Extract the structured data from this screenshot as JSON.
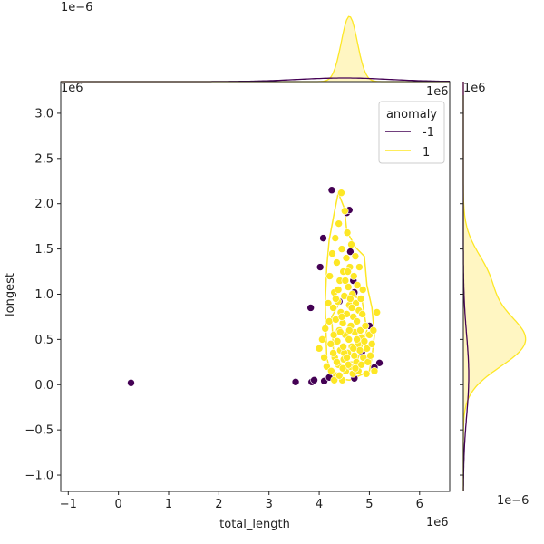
{
  "chart_data": {
    "type": "scatter",
    "title": "",
    "xlabel": "total_length",
    "ylabel": "longest",
    "x_offset_label": "1e6",
    "y_offset_label": "1e6",
    "top_marginal_offset_label": "1e−6",
    "right_marginal_offset_label": "1e−6",
    "xlim": [
      -1.15,
      6.6
    ],
    "ylim": [
      -1.18,
      3.35
    ],
    "x_ticks": [
      -1,
      0,
      1,
      2,
      3,
      4,
      5,
      6
    ],
    "y_ticks": [
      -1.0,
      -0.5,
      0.0,
      0.5,
      1.0,
      1.5,
      2.0,
      2.5,
      3.0
    ],
    "x_tick_labels": [
      "−1",
      "0",
      "1",
      "2",
      "3",
      "4",
      "5",
      "6"
    ],
    "y_tick_labels": [
      "−1.0",
      "−0.5",
      "0.0",
      "0.5",
      "1.0",
      "1.5",
      "2.0",
      "2.5",
      "3.0"
    ],
    "legend": {
      "title": "anomaly",
      "placement": "top-right",
      "entries": [
        {
          "label": "-1",
          "color": "#440154"
        },
        {
          "label": "1",
          "color": "#fde725"
        }
      ]
    },
    "colors": {
      "anomaly": "#440154",
      "normal": "#fde725",
      "normal_fill": "#fff6c2"
    },
    "series": [
      {
        "name": "-1",
        "points": [
          [
            0.25,
            0.02
          ],
          [
            3.53,
            0.03
          ],
          [
            3.85,
            0.03
          ],
          [
            3.9,
            0.05
          ],
          [
            4.1,
            0.04
          ],
          [
            4.2,
            0.08
          ],
          [
            3.83,
            0.85
          ],
          [
            4.02,
            1.3
          ],
          [
            4.08,
            1.62
          ],
          [
            4.25,
            2.15
          ],
          [
            4.55,
            1.9
          ],
          [
            4.6,
            1.93
          ],
          [
            4.62,
            1.47
          ],
          [
            4.68,
            1.15
          ],
          [
            4.7,
            1.02
          ],
          [
            4.95,
            0.65
          ],
          [
            5.0,
            0.65
          ],
          [
            5.2,
            0.24
          ],
          [
            5.1,
            0.19
          ],
          [
            4.7,
            0.07
          ],
          [
            4.85,
            0.36
          ],
          [
            4.4,
            0.92
          ]
        ]
      },
      {
        "name": "1",
        "points": [
          [
            4.0,
            0.4
          ],
          [
            4.06,
            0.5
          ],
          [
            4.1,
            0.3
          ],
          [
            4.12,
            0.62
          ],
          [
            4.15,
            0.2
          ],
          [
            4.18,
            0.9
          ],
          [
            4.2,
            0.7
          ],
          [
            4.21,
            1.2
          ],
          [
            4.23,
            0.45
          ],
          [
            4.24,
            0.15
          ],
          [
            4.26,
            1.45
          ],
          [
            4.28,
            0.85
          ],
          [
            4.29,
            0.55
          ],
          [
            4.3,
            1.02
          ],
          [
            4.31,
            0.3
          ],
          [
            4.32,
            1.62
          ],
          [
            4.33,
            0.72
          ],
          [
            4.34,
            0.1
          ],
          [
            4.35,
            1.35
          ],
          [
            4.36,
            0.48
          ],
          [
            4.37,
            0.92
          ],
          [
            4.38,
            0.22
          ],
          [
            4.39,
            1.78
          ],
          [
            4.4,
            0.6
          ],
          [
            4.41,
            1.15
          ],
          [
            4.42,
            0.38
          ],
          [
            4.43,
            0.8
          ],
          [
            4.44,
            2.12
          ],
          [
            4.45,
            1.5
          ],
          [
            4.46,
            0.05
          ],
          [
            4.47,
            0.68
          ],
          [
            4.48,
            1.25
          ],
          [
            4.49,
            0.28
          ],
          [
            4.5,
            0.98
          ],
          [
            4.51,
            1.92
          ],
          [
            4.52,
            0.55
          ],
          [
            4.53,
            0.15
          ],
          [
            4.54,
            1.4
          ],
          [
            4.55,
            0.78
          ],
          [
            4.56,
            1.68
          ],
          [
            4.57,
            0.35
          ],
          [
            4.58,
            1.08
          ],
          [
            4.59,
            0.5
          ],
          [
            4.6,
            0.88
          ],
          [
            4.61,
            1.3
          ],
          [
            4.62,
            0.2
          ],
          [
            4.63,
            0.65
          ],
          [
            4.64,
            1.55
          ],
          [
            4.65,
            0.42
          ],
          [
            4.66,
            1.0
          ],
          [
            4.67,
            0.12
          ],
          [
            4.68,
            0.75
          ],
          [
            4.69,
            1.2
          ],
          [
            4.7,
            0.32
          ],
          [
            4.71,
            0.58
          ],
          [
            4.72,
            1.42
          ],
          [
            4.73,
            0.9
          ],
          [
            4.74,
            0.25
          ],
          [
            4.75,
            0.7
          ],
          [
            4.76,
            1.1
          ],
          [
            4.77,
            0.45
          ],
          [
            4.78,
            0.15
          ],
          [
            4.79,
            0.82
          ],
          [
            4.8,
            1.3
          ],
          [
            4.81,
            0.38
          ],
          [
            4.82,
            0.6
          ],
          [
            4.83,
            0.95
          ],
          [
            4.84,
            0.22
          ],
          [
            4.85,
            0.52
          ],
          [
            4.86,
            0.78
          ],
          [
            4.87,
            1.05
          ],
          [
            4.88,
            0.3
          ],
          [
            4.9,
            0.48
          ],
          [
            4.92,
            0.65
          ],
          [
            4.94,
            0.12
          ],
          [
            4.95,
            0.4
          ],
          [
            4.97,
            0.25
          ],
          [
            5.0,
            0.55
          ],
          [
            5.02,
            0.32
          ],
          [
            5.05,
            0.45
          ],
          [
            5.08,
            0.6
          ],
          [
            5.1,
            0.15
          ],
          [
            5.15,
            0.8
          ],
          [
            4.3,
            0.05
          ],
          [
            4.4,
            0.1
          ],
          [
            4.5,
            0.35
          ],
          [
            4.6,
            0.6
          ],
          [
            4.45,
            0.75
          ],
          [
            4.35,
            0.25
          ],
          [
            4.55,
            0.3
          ],
          [
            4.65,
            0.85
          ],
          [
            4.75,
            0.5
          ],
          [
            4.42,
            0.58
          ],
          [
            4.52,
            1.15
          ],
          [
            4.48,
            0.42
          ],
          [
            4.58,
            0.22
          ],
          [
            4.38,
            1.05
          ],
          [
            4.62,
            0.95
          ],
          [
            4.68,
            0.4
          ],
          [
            4.28,
            0.35
          ],
          [
            4.33,
            0.95
          ],
          [
            4.47,
            0.18
          ],
          [
            4.57,
            1.25
          ],
          [
            4.72,
            0.18
          ]
        ]
      }
    ],
    "kde_contour": [
      [
        4.38,
        2.12
      ],
      [
        4.5,
        1.95
      ],
      [
        4.55,
        1.7
      ],
      [
        4.72,
        1.52
      ],
      [
        4.9,
        1.42
      ],
      [
        4.95,
        1.1
      ],
      [
        5.05,
        0.85
      ],
      [
        5.1,
        0.55
      ],
      [
        5.05,
        0.3
      ],
      [
        5.0,
        0.15
      ],
      [
        4.6,
        0.05
      ],
      [
        4.25,
        0.08
      ],
      [
        4.15,
        0.3
      ],
      [
        4.12,
        0.9
      ],
      [
        4.15,
        1.3
      ],
      [
        4.2,
        1.6
      ],
      [
        4.3,
        1.9
      ],
      [
        4.38,
        2.12
      ]
    ],
    "inner_contour": [
      [
        4.35,
        0.25
      ],
      [
        4.75,
        0.25
      ],
      [
        4.95,
        0.6
      ],
      [
        4.85,
        0.95
      ],
      [
        4.5,
        1.0
      ],
      [
        4.25,
        0.75
      ],
      [
        4.28,
        0.4
      ],
      [
        4.35,
        0.25
      ]
    ],
    "top_marginal": {
      "normal_peak_x": 4.6,
      "normal_sigma": 0.16,
      "anomaly_peak_x": 4.5,
      "anomaly_sigma": 0.9
    },
    "right_marginal": {
      "normal_peak_y": 0.48,
      "normal_sigma": 0.38,
      "normal_shoulder_y": 1.15,
      "anomaly_peak_y": 0.1,
      "anomaly_sigma": 0.45
    }
  }
}
